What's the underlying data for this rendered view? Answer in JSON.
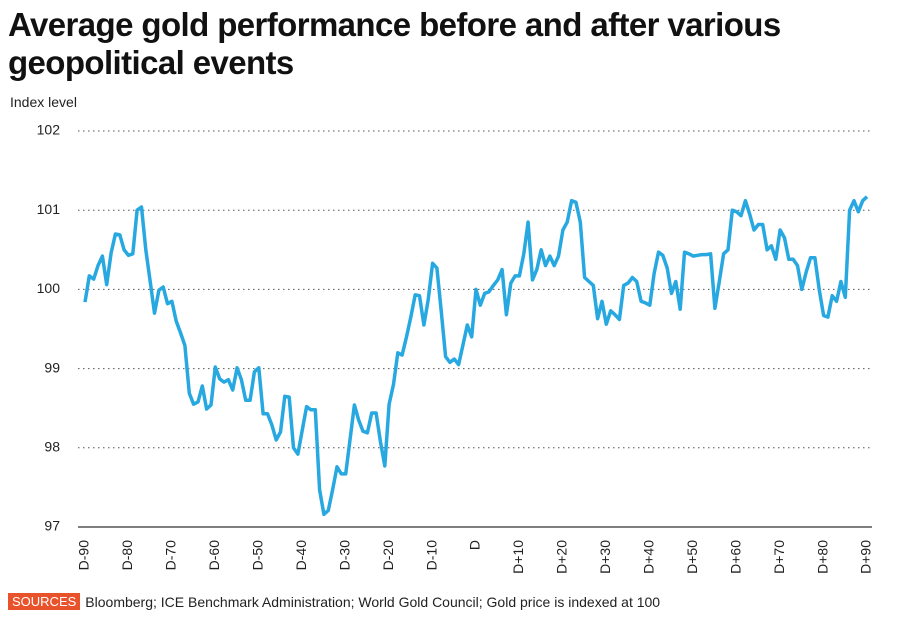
{
  "chart_data": {
    "type": "line",
    "title": "Average gold performance before and after various geopolitical events",
    "ylabel": "Index level",
    "source_label": "SOURCES",
    "source": "Bloomberg; ICE Benchmark Administration; World Gold Council; Gold price is indexed at 100",
    "color": "#27a8e0",
    "grid": true,
    "ylim": [
      97,
      102
    ],
    "yticks": [
      97,
      98,
      99,
      100,
      101,
      102
    ],
    "xlim": [
      -90,
      90
    ],
    "xticks": [
      {
        "value": -90,
        "label": "D-90"
      },
      {
        "value": -80,
        "label": "D-80"
      },
      {
        "value": -70,
        "label": "D-70"
      },
      {
        "value": -60,
        "label": "D-60"
      },
      {
        "value": -50,
        "label": "D-50"
      },
      {
        "value": -40,
        "label": "D-40"
      },
      {
        "value": -30,
        "label": "D-30"
      },
      {
        "value": -20,
        "label": "D-20"
      },
      {
        "value": -10,
        "label": "D-10"
      },
      {
        "value": 0,
        "label": "D"
      },
      {
        "value": 10,
        "label": "D+10"
      },
      {
        "value": 20,
        "label": "D+20"
      },
      {
        "value": 30,
        "label": "D+30"
      },
      {
        "value": 40,
        "label": "D+40"
      },
      {
        "value": 50,
        "label": "D+50"
      },
      {
        "value": 60,
        "label": "D+60"
      },
      {
        "value": 70,
        "label": "D+70"
      },
      {
        "value": 80,
        "label": "D+80"
      },
      {
        "value": 90,
        "label": "D+90"
      }
    ],
    "x": [
      -90,
      -89,
      -88,
      -87,
      -86,
      -85,
      -84,
      -83,
      -82,
      -81,
      -80,
      -79,
      -78,
      -77,
      -76,
      -75,
      -74,
      -73,
      -72,
      -71,
      -70,
      -69,
      -68,
      -67,
      -66,
      -65,
      -64,
      -63,
      -62,
      -61,
      -60,
      -59,
      -58,
      -57,
      -56,
      -55,
      -54,
      -53,
      -52,
      -51,
      -50,
      -49,
      -48,
      -47,
      -46,
      -45,
      -44,
      -43,
      -42,
      -41,
      -40,
      -39,
      -38,
      -37,
      -36,
      -35,
      -34,
      -33,
      -32,
      -31,
      -30,
      -29,
      -28,
      -27,
      -26,
      -25,
      -24,
      -23,
      -22,
      -21,
      -20,
      -19,
      -18,
      -17,
      -16,
      -15,
      -14,
      -13,
      -12,
      -11,
      -10,
      -9,
      -8,
      -7,
      -6,
      -5,
      -4,
      -3,
      -2,
      -1,
      0,
      1,
      2,
      3,
      4,
      5,
      6,
      7,
      8,
      9,
      10,
      11,
      12,
      13,
      14,
      15,
      16,
      17,
      18,
      19,
      20,
      21,
      22,
      23,
      24,
      25,
      26,
      27,
      28,
      29,
      30,
      31,
      32,
      33,
      34,
      35,
      36,
      37,
      38,
      39,
      40,
      41,
      42,
      43,
      44,
      45,
      46,
      47,
      48,
      49,
      50,
      51,
      52,
      53,
      54,
      55,
      56,
      57,
      58,
      59,
      60,
      61,
      62,
      63,
      64,
      65,
      66,
      67,
      68,
      69,
      70,
      71,
      72,
      73,
      74,
      75,
      76,
      77,
      78,
      79,
      80,
      81,
      82,
      83,
      84,
      85,
      86,
      87,
      88,
      89,
      90
    ],
    "values": [
      99.84,
      100.17,
      100.13,
      100.3,
      100.42,
      100.06,
      100.46,
      100.7,
      100.69,
      100.5,
      100.43,
      100.45,
      101.0,
      101.04,
      100.5,
      100.1,
      99.7,
      99.99,
      100.03,
      99.82,
      99.85,
      99.6,
      99.45,
      99.29,
      98.69,
      98.55,
      98.58,
      98.78,
      98.49,
      98.54,
      99.02,
      98.87,
      98.83,
      98.86,
      98.73,
      99.01,
      98.86,
      98.6,
      98.6,
      98.96,
      99.01,
      98.43,
      98.43,
      98.29,
      98.1,
      98.2,
      98.65,
      98.64,
      98.0,
      97.92,
      98.22,
      98.52,
      98.48,
      98.48,
      97.47,
      97.16,
      97.21,
      97.47,
      97.76,
      97.67,
      97.67,
      98.1,
      98.54,
      98.35,
      98.21,
      98.19,
      98.44,
      98.44,
      98.08,
      97.77,
      98.55,
      98.8,
      99.2,
      99.17,
      99.4,
      99.65,
      99.93,
      99.92,
      99.55,
      99.87,
      100.33,
      100.27,
      99.73,
      99.15,
      99.08,
      99.12,
      99.05,
      99.3,
      99.55,
      99.4,
      100.0,
      99.8,
      99.95,
      99.97,
      100.05,
      100.12,
      100.25,
      99.68,
      100.08,
      100.17,
      100.17,
      100.45,
      100.85,
      100.12,
      100.25,
      100.5,
      100.3,
      100.42,
      100.3,
      100.42,
      100.75,
      100.85,
      101.12,
      101.1,
      100.85,
      100.15,
      100.1,
      100.05,
      99.63,
      99.85,
      99.56,
      99.73,
      99.68,
      99.62,
      100.05,
      100.08,
      100.15,
      100.1,
      99.85,
      99.83,
      99.8,
      100.2,
      100.47,
      100.43,
      100.27,
      99.95,
      100.1,
      99.75,
      100.47,
      100.45,
      100.42,
      100.43,
      100.44,
      100.44,
      100.45,
      99.76,
      100.1,
      100.45,
      100.5,
      101.0,
      100.98,
      100.93,
      101.12,
      100.95,
      100.75,
      100.82,
      100.82,
      100.5,
      100.55,
      100.38,
      100.75,
      100.65,
      100.38,
      100.38,
      100.3,
      100.0,
      100.22,
      100.4,
      100.4,
      100.0,
      99.67,
      99.65,
      99.92,
      99.85,
      100.1,
      99.9,
      101.0,
      101.12,
      100.98,
      101.12,
      101.17
    ]
  }
}
